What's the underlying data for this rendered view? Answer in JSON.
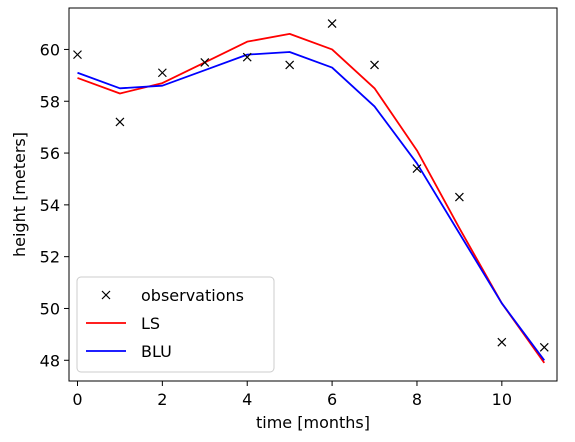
{
  "chart_data": {
    "type": "line",
    "xlabel": "time [months]",
    "ylabel": "height [meters]",
    "xlim": [
      -0.2,
      11.3
    ],
    "ylim": [
      47.2,
      61.6
    ],
    "xticks": [
      0,
      2,
      4,
      6,
      8,
      10
    ],
    "yticks": [
      48,
      50,
      52,
      54,
      56,
      58,
      60
    ],
    "grid": false,
    "legend_position": "lower-left",
    "series": [
      {
        "name": "observations",
        "kind": "markers",
        "marker": "x",
        "color": "#000000",
        "x": [
          0,
          1,
          2,
          3,
          4,
          5,
          6,
          7,
          8,
          9,
          10,
          11
        ],
        "y": [
          59.8,
          57.2,
          59.1,
          59.5,
          59.7,
          59.4,
          61.0,
          59.4,
          55.4,
          54.3,
          48.7,
          48.5
        ]
      },
      {
        "name": "LS",
        "kind": "line",
        "color": "#ff0000",
        "x": [
          0,
          1,
          2,
          3,
          4,
          5,
          6,
          7,
          8,
          9,
          10,
          11
        ],
        "y": [
          58.9,
          58.3,
          58.7,
          59.5,
          60.3,
          60.6,
          60.0,
          58.5,
          56.1,
          53.1,
          50.2,
          47.9
        ]
      },
      {
        "name": "BLU",
        "kind": "line",
        "color": "#0000ff",
        "x": [
          0,
          1,
          2,
          3,
          4,
          5,
          6,
          7,
          8,
          9,
          10,
          11
        ],
        "y": [
          59.1,
          58.5,
          58.6,
          59.2,
          59.8,
          59.9,
          59.3,
          57.8,
          55.6,
          52.9,
          50.2,
          48.0
        ]
      }
    ]
  }
}
